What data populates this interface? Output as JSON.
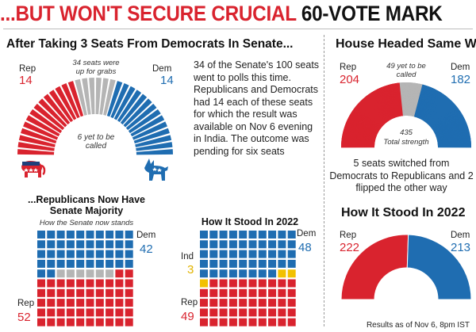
{
  "headline": {
    "part1": "...BUT WON'T SECURE CRUCIAL ",
    "part2": "60-VOTE MARK"
  },
  "colors": {
    "rep": "#d9232e",
    "dem": "#1f6db1",
    "undecided": "#b5b5b5",
    "ind": "#f2c100"
  },
  "senate_section": {
    "title": "After Taking 3 Seats From Democrats In Senate...",
    "rep_label": "Rep",
    "rep_value": "14",
    "dem_label": "Dem",
    "dem_value": "14",
    "up_for_grabs_note": "34 seats were up for grabs",
    "yet_to_be_called_note": "6 yet to be called",
    "description": "34 of the Senate's 100 seats went to polls this time. Republicans and Democrats had 14 each of these seats for which the result was available on Nov 6 evening in India. The outcome was pending for six seats"
  },
  "majority_section": {
    "title": "...Republicans Now Have Senate Majority",
    "note": "How the Senate now stands",
    "dem_label": "Dem",
    "dem_value": "42",
    "rep_label": "Rep",
    "rep_value": "52"
  },
  "stood_2022_senate": {
    "title": "How It Stood In 2022",
    "dem_label": "Dem",
    "dem_value": "48",
    "ind_label": "Ind",
    "ind_value": "3",
    "rep_label": "Rep",
    "rep_value": "49"
  },
  "house_section": {
    "title": "House Headed Same Way",
    "rep_label": "Rep",
    "rep_value": "204",
    "dem_label": "Dem",
    "dem_value": "182",
    "yet_note": "49 yet to be called",
    "total_value": "435",
    "total_label": "Total strength",
    "flip_text": "5 seats switched from Democrats to Republicans and 2 flipped the other way"
  },
  "house_2022": {
    "title": "How It Stood In 2022",
    "rep_label": "Rep",
    "rep_value": "222",
    "dem_label": "Dem",
    "dem_value": "213"
  },
  "footer": "Results as of Nov 6, 8pm IST",
  "chart_data": [
    {
      "type": "semicircle",
      "categories": [
        "Rep",
        "Undecided",
        "Dem"
      ],
      "values": [
        14,
        6,
        14
      ]
    },
    {
      "type": "waffle",
      "categories": [
        "Dem",
        "Undecided",
        "Rep"
      ],
      "values": [
        42,
        6,
        52
      ]
    },
    {
      "type": "waffle",
      "categories": [
        "Dem",
        "Ind",
        "Rep"
      ],
      "values": [
        48,
        3,
        49
      ]
    },
    {
      "type": "semicircle",
      "categories": [
        "Rep",
        "Undecided",
        "Dem"
      ],
      "values": [
        204,
        49,
        182
      ]
    },
    {
      "type": "semicircle",
      "categories": [
        "Rep",
        "Dem"
      ],
      "values": [
        222,
        213
      ]
    }
  ]
}
